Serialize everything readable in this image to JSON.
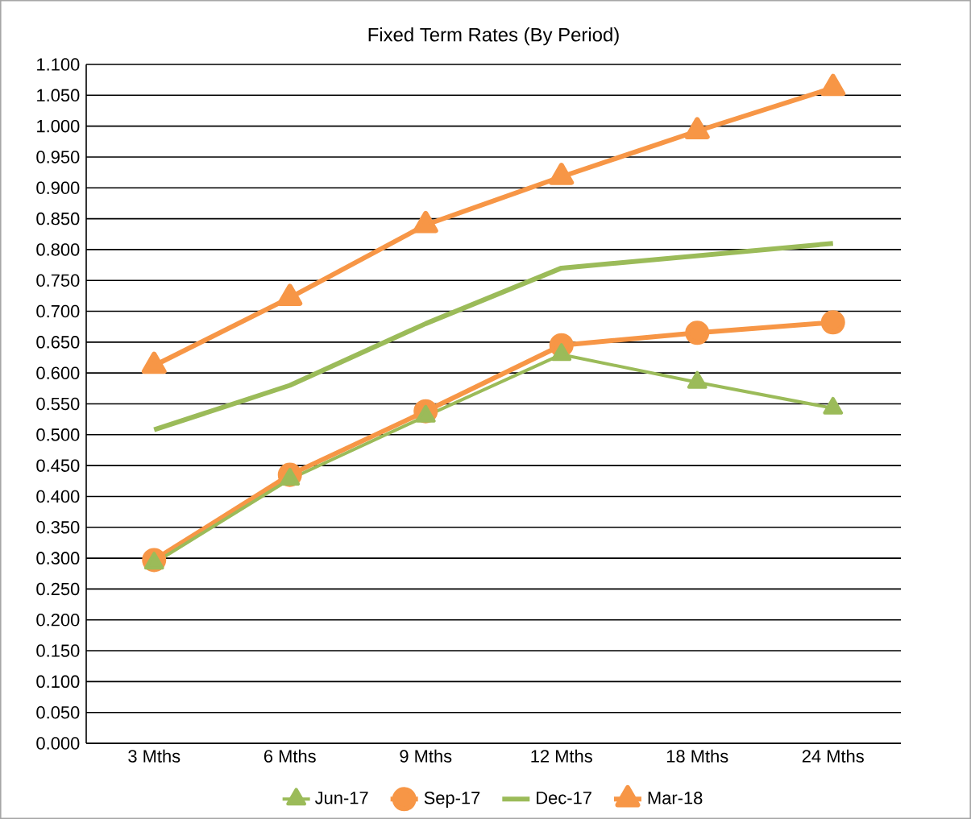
{
  "chart_data": {
    "type": "line",
    "title": "Fixed Term Rates (By Period)",
    "categories": [
      "3 Mths",
      "6 Mths",
      "9 Mths",
      "12 Mths",
      "18 Mths",
      "24 Mths"
    ],
    "series": [
      {
        "name": "Jun-17",
        "color": "#9bbb59",
        "marker": "triangle",
        "values": [
          0.292,
          0.428,
          0.53,
          0.63,
          0.585,
          0.543
        ]
      },
      {
        "name": "Sep-17",
        "color": "#f79646",
        "marker": "circle",
        "values": [
          0.297,
          0.435,
          0.538,
          0.645,
          0.665,
          0.682
        ]
      },
      {
        "name": "Dec-17",
        "color": "#9bbb59",
        "marker": "none",
        "values": [
          0.508,
          0.58,
          0.68,
          0.77,
          0.79,
          0.81
        ]
      },
      {
        "name": "Mar-18",
        "color": "#f79646",
        "marker": "triangle",
        "values": [
          0.612,
          0.722,
          0.84,
          0.918,
          0.992,
          1.062
        ]
      }
    ],
    "ylim": [
      0,
      1.1
    ],
    "yticks": [
      {
        "value": 0,
        "label": "0.000"
      },
      {
        "value": 0.05,
        "label": "0.050"
      },
      {
        "value": 0.1,
        "label": "0.100"
      },
      {
        "value": 0.15,
        "label": "0.150"
      },
      {
        "value": 0.2,
        "label": "0.200"
      },
      {
        "value": 0.25,
        "label": "0.250"
      },
      {
        "value": 0.3,
        "label": "0.300"
      },
      {
        "value": 0.35,
        "label": "0.350"
      },
      {
        "value": 0.4,
        "label": "0.400"
      },
      {
        "value": 0.45,
        "label": "0.450"
      },
      {
        "value": 0.5,
        "label": "0.500"
      },
      {
        "value": 0.55,
        "label": "0.550"
      },
      {
        "value": 0.6,
        "label": "0.600"
      },
      {
        "value": 0.65,
        "label": "0.650"
      },
      {
        "value": 0.7,
        "label": "0.700"
      },
      {
        "value": 0.75,
        "label": "0.750"
      },
      {
        "value": 0.8,
        "label": "0.800"
      },
      {
        "value": 0.85,
        "label": "0.850"
      },
      {
        "value": 0.9,
        "label": "0.900"
      },
      {
        "value": 0.95,
        "label": "0.950"
      },
      {
        "value": 1.0,
        "label": "1.000"
      },
      {
        "value": 1.05,
        "label": "1.050"
      },
      {
        "value": 1.1,
        "label": "1.100"
      }
    ],
    "grid": "y",
    "legend": "bottom",
    "line_style": "solid"
  }
}
